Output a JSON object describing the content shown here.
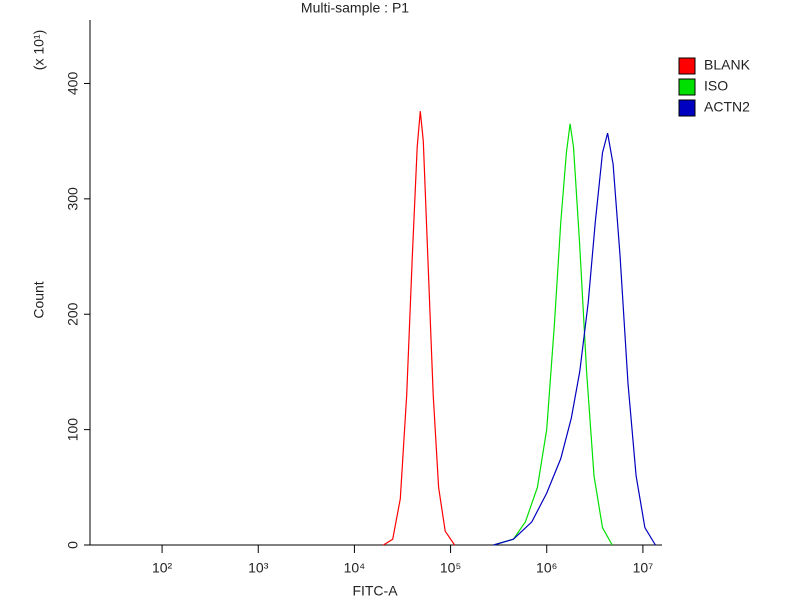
{
  "chart_data": {
    "type": "line",
    "title": "Multi-sample : P1",
    "x_label": "FITC-A",
    "y_label": "Count",
    "y_multiplier": "(x 10¹)",
    "log_x": true,
    "legend": "right",
    "xlim": [
      17.8,
      15800000
    ],
    "ylim": [
      0,
      455
    ],
    "xticks": [
      {
        "value": 100,
        "label": "10²"
      },
      {
        "value": 1000,
        "label": "10³"
      },
      {
        "value": 10000,
        "label": "10⁴"
      },
      {
        "value": 100000,
        "label": "10⁵"
      },
      {
        "value": 1000000,
        "label": "10⁶"
      },
      {
        "value": 10000000,
        "label": "10⁷"
      }
    ],
    "yticks": [
      0,
      100,
      200,
      300,
      400
    ],
    "series": [
      {
        "name": "BLANK",
        "color": "#ff0000",
        "x": [
          20000,
          25000,
          30000,
          35000,
          40000,
          45000,
          48400,
          52000,
          58000,
          66000,
          75000,
          88000,
          110000
        ],
        "values": [
          0,
          5,
          40,
          130,
          250,
          345,
          376,
          350,
          250,
          130,
          50,
          12,
          0
        ]
      },
      {
        "name": "ISO",
        "color": "#00e000",
        "x": [
          280000,
          450000,
          600000,
          800000,
          1000000,
          1200000,
          1400000,
          1600000,
          1750000,
          1900000,
          2200000,
          2600000,
          3100000,
          3800000,
          4800000
        ],
        "values": [
          0,
          5,
          20,
          50,
          100,
          190,
          280,
          340,
          365,
          345,
          260,
          150,
          60,
          15,
          0
        ]
      },
      {
        "name": "ACTN2",
        "color": "#0000c0",
        "x": [
          280000,
          450000,
          700000,
          1000000,
          1400000,
          1800000,
          2200000,
          2700000,
          3200000,
          3800000,
          4300000,
          4900000,
          5800000,
          7000000,
          8500000,
          10500000,
          13500000
        ],
        "values": [
          0,
          5,
          20,
          45,
          75,
          110,
          150,
          210,
          280,
          340,
          357,
          330,
          250,
          140,
          60,
          15,
          0
        ]
      }
    ]
  }
}
